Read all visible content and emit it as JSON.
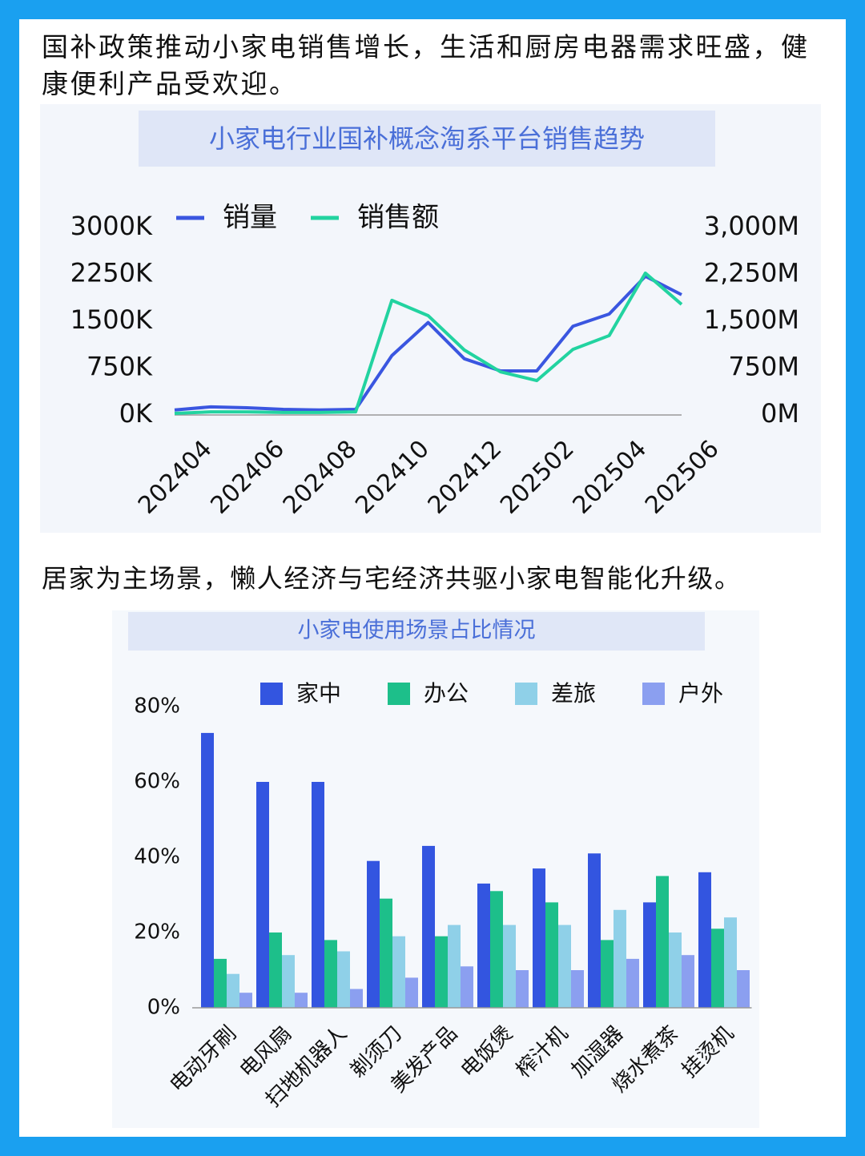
{
  "captions": [
    "国补政策推动小家电销售增长，生活和厨房电器需求旺盛，健康便利产品受欢迎。",
    "居家为主场景，懒人经济与宅经济共驱小家电智能化升级。"
  ],
  "chart_data": [
    {
      "type": "line",
      "title": "小家电行业国补概念淘系平台销售趋势",
      "categories": [
        "202404",
        null,
        "202406",
        null,
        "202408",
        null,
        "202410",
        null,
        "202412",
        null,
        "202502",
        null,
        "202504",
        null,
        "202506"
      ],
      "series": [
        {
          "name": "销量",
          "color": "#3a56e0",
          "values": [
            80,
            130,
            115,
            90,
            80,
            90,
            950,
            1480,
            900,
            705,
            705,
            1420,
            1615,
            2220,
            1925
          ]
        },
        {
          "name": "销售额",
          "color": "#22d3a0",
          "axis": "y2",
          "values": [
            25,
            50,
            50,
            40,
            40,
            50,
            1835,
            1590,
            1040,
            690,
            550,
            1050,
            1270,
            2270,
            1770
          ]
        }
      ],
      "ylim": [
        0,
        3000
      ],
      "yticks": [
        {
          "value": 0,
          "label": "0K"
        },
        {
          "value": 750,
          "label": "750K"
        },
        {
          "value": 1500,
          "label": "1500K"
        },
        {
          "value": 2250,
          "label": "2250K"
        },
        {
          "value": 3000,
          "label": "3000K"
        }
      ],
      "y2lim": [
        0,
        3000
      ],
      "y2ticks": [
        {
          "value": 0,
          "label": "0M"
        },
        {
          "value": 750,
          "label": "750M"
        },
        {
          "value": 1500,
          "label": "1,500M"
        },
        {
          "value": 2250,
          "label": "2,250M"
        },
        {
          "value": 3000,
          "label": "3,000M"
        }
      ],
      "legend": "top-left",
      "grid": false
    },
    {
      "type": "bar",
      "title": "小家电使用场景占比情况",
      "categories": [
        "电动牙刷",
        "电风扇",
        "扫地机器人",
        "剃须刀",
        "美发产品",
        "电饭煲",
        "榨汁机",
        "加湿器",
        "烧水煮茶",
        "挂烫机"
      ],
      "series": [
        {
          "name": "家中",
          "color": "#3355e0",
          "values": [
            73,
            60,
            60,
            39,
            43,
            33,
            37,
            41,
            28,
            36
          ]
        },
        {
          "name": "办公",
          "color": "#1dbf8a",
          "values": [
            13,
            20,
            18,
            29,
            19,
            31,
            28,
            18,
            35,
            21
          ]
        },
        {
          "name": "差旅",
          "color": "#8fd0e8",
          "values": [
            9,
            14,
            15,
            19,
            22,
            22,
            22,
            26,
            20,
            24
          ]
        },
        {
          "name": "户外",
          "color": "#8b9ff0",
          "values": [
            4,
            4,
            5,
            8,
            11,
            10,
            10,
            13,
            14,
            10
          ]
        }
      ],
      "ylim": [
        0,
        80
      ],
      "yticks": [
        {
          "value": 0,
          "label": "0%"
        },
        {
          "value": 20,
          "label": "20%"
        },
        {
          "value": 40,
          "label": "40%"
        },
        {
          "value": 60,
          "label": "60%"
        },
        {
          "value": 80,
          "label": "80%"
        }
      ],
      "legend": "top",
      "grid": false
    }
  ]
}
